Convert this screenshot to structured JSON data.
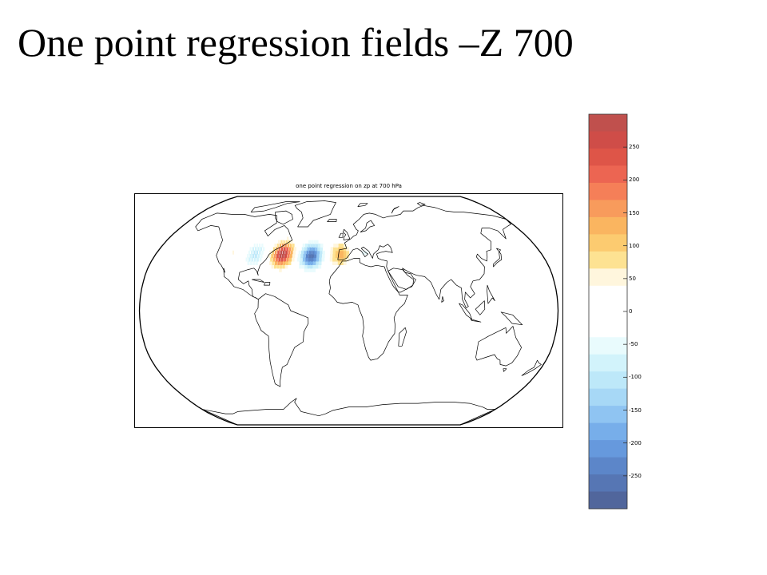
{
  "slide": {
    "title": "One point regression fields –Z 700"
  },
  "map": {
    "title": "one point regression on zp at 700 hPa",
    "projection": "Robinson",
    "field": "zp",
    "level": "700 hPa"
  },
  "colorbar": {
    "range": [
      -300,
      300
    ],
    "levels": [
      {
        "value": 275,
        "color": "#c0504d"
      },
      {
        "value": 250,
        "color": "#cf4d48"
      },
      {
        "value": 225,
        "color": "#de5548"
      },
      {
        "value": 200,
        "color": "#ec6552"
      },
      {
        "value": 175,
        "color": "#f57f58"
      },
      {
        "value": 150,
        "color": "#f89b5c"
      },
      {
        "value": 125,
        "color": "#fab560"
      },
      {
        "value": 100,
        "color": "#fccb70"
      },
      {
        "value": 75,
        "color": "#fde292"
      },
      {
        "value": 50,
        "color": "#fff6dd"
      },
      {
        "value": 25,
        "color": "#ffffff"
      },
      {
        "value": 0,
        "color": "#ffffff"
      },
      {
        "value": -25,
        "color": "#ffffff"
      },
      {
        "value": -50,
        "color": "#e9fbfd"
      },
      {
        "value": -75,
        "color": "#d2f3fb"
      },
      {
        "value": -100,
        "color": "#bde8f9"
      },
      {
        "value": -125,
        "color": "#a7d8f6"
      },
      {
        "value": -150,
        "color": "#8fc4f2"
      },
      {
        "value": -175,
        "color": "#77aeea"
      },
      {
        "value": -200,
        "color": "#6699dd"
      },
      {
        "value": -225,
        "color": "#5c86c9"
      },
      {
        "value": -250,
        "color": "#5676b4"
      },
      {
        "value": -275,
        "color": "#51669c"
      }
    ],
    "tick_labels": [
      "250",
      "200",
      "150",
      "100",
      "50",
      "0",
      "-50",
      "-100",
      "-150",
      "-200",
      "-250"
    ],
    "tick_values": [
      250,
      200,
      150,
      100,
      50,
      0,
      -50,
      -100,
      -150,
      -200,
      -250
    ]
  },
  "anomalies": [
    {
      "name": "positive-center-nw-atlantic",
      "lon": -62,
      "lat": 40,
      "value": 280
    },
    {
      "name": "negative-center-mid-atlantic",
      "lon": -35,
      "lat": 39,
      "value": -260
    },
    {
      "name": "positive-center-iberia",
      "lon": -8,
      "lat": 40,
      "value": 120
    },
    {
      "name": "negative-center-north-america",
      "lon": -88,
      "lat": 40,
      "value": -100
    },
    {
      "name": "positive-center-central-us",
      "lon": -108,
      "lat": 42,
      "value": 40
    },
    {
      "name": "negative-center-mediterranean",
      "lon": 15,
      "lat": 42,
      "value": -40
    }
  ]
}
